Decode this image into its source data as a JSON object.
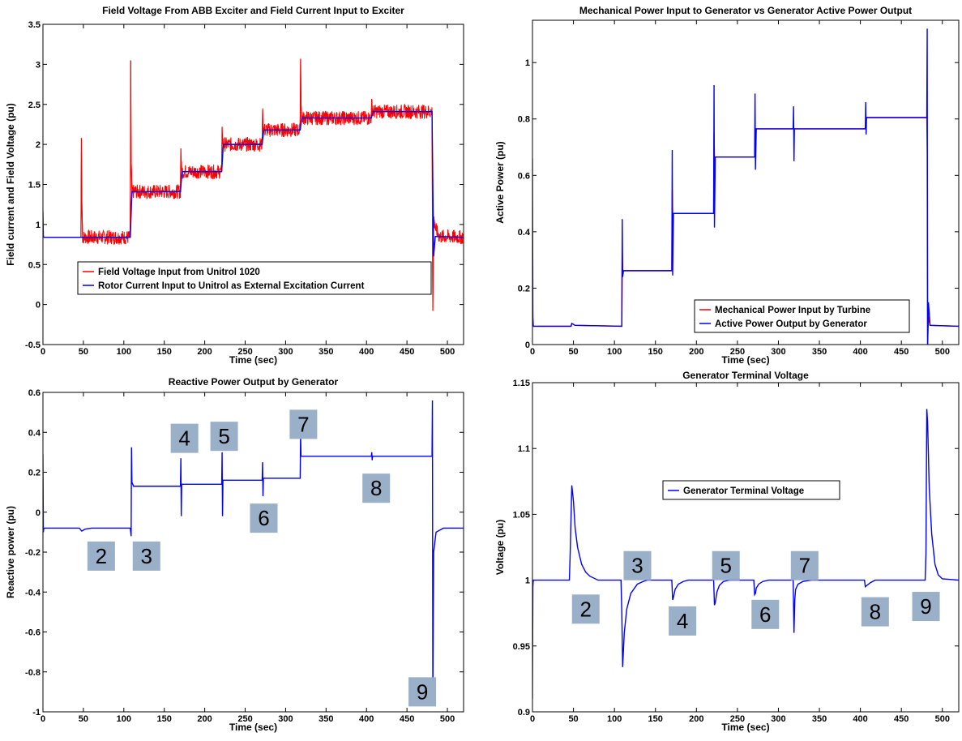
{
  "chart_data": [
    {
      "type": "line",
      "title": "Field Voltage From ABB Exciter and Field Current Input to Exciter",
      "xlabel": "Time (sec)",
      "ylabel": "Field current and Field Voltage (pu)",
      "xlim": [
        0,
        520
      ],
      "ylim": [
        -0.5,
        3.5
      ],
      "xticks": [
        "0",
        "50",
        "100",
        "150",
        "200",
        "250",
        "300",
        "350",
        "400",
        "450",
        "500"
      ],
      "yticks": [
        "-0.5",
        "0",
        "0.5",
        "1",
        "1.5",
        "2",
        "2.5",
        "3",
        "3.5"
      ],
      "legend_placement": "bottom-center",
      "series": [
        {
          "name": "Field Voltage Input from Unitrol 1020",
          "color": "#ff0000",
          "band_halfwidth": 0.09,
          "x": [
            0,
            47,
            47.5,
            48,
            49,
            108,
            108.5,
            109,
            110,
            170,
            170.5,
            171,
            172,
            221,
            221.5,
            222,
            223,
            271,
            271.5,
            272,
            273,
            318,
            318.5,
            319,
            320,
            406,
            406.5,
            407,
            408,
            481,
            482,
            483,
            485,
            490,
            520
          ],
          "y": [
            0.84,
            0.84,
            2.08,
            1.3,
            0.84,
            0.84,
            3.05,
            1.8,
            1.41,
            1.41,
            1.95,
            1.72,
            1.66,
            1.66,
            2.22,
            2.05,
            2.0,
            2.0,
            2.43,
            2.24,
            2.18,
            2.18,
            3.07,
            2.5,
            2.33,
            2.33,
            2.56,
            2.45,
            2.41,
            2.41,
            -0.08,
            1.1,
            0.95,
            0.85,
            0.84
          ]
        },
        {
          "name": "Rotor Current Input to Unitrol as External Excitation Current",
          "color": "#0000ff",
          "x": [
            0,
            0.5,
            1,
            47,
            49,
            108,
            110,
            170,
            172,
            221,
            223,
            271,
            273,
            318,
            320,
            406,
            408,
            481,
            483,
            485,
            520
          ],
          "y": [
            1.16,
            0.86,
            0.84,
            0.84,
            0.84,
            0.84,
            1.41,
            1.41,
            1.66,
            1.66,
            2.0,
            2.0,
            2.18,
            2.18,
            2.33,
            2.33,
            2.41,
            2.41,
            0.6,
            0.85,
            0.84
          ]
        }
      ]
    },
    {
      "type": "line",
      "title": "Mechanical Power Input to Generator vs Generator Active Power Output",
      "xlabel": "Time (sec)",
      "ylabel": "Active Power (pu)",
      "xlim": [
        0,
        520
      ],
      "ylim": [
        0,
        1.15
      ],
      "xticks": [
        "0",
        "50",
        "100",
        "150",
        "200",
        "250",
        "300",
        "350",
        "400",
        "450",
        "500"
      ],
      "yticks": [
        "0",
        "0.2",
        "0.4",
        "0.6",
        "0.8",
        "1"
      ],
      "legend_placement": "bottom-right",
      "series": [
        {
          "name": "Mechanical Power Input by Turbine",
          "color": "#ff0000",
          "x": [
            0,
            47,
            48,
            52,
            109,
            109.5,
            110,
            170,
            170.5,
            171,
            221,
            221.5,
            222,
            271,
            272,
            318,
            319,
            406,
            407,
            481,
            481.5,
            482,
            483,
            485,
            520
          ],
          "y": [
            0.065,
            0.065,
            0.075,
            0.068,
            0.065,
            0.335,
            0.262,
            0.262,
            0.55,
            0.465,
            0.465,
            0.75,
            0.665,
            0.665,
            0.765,
            0.765,
            0.765,
            0.765,
            0.805,
            0.805,
            0.68,
            0.0,
            0.1,
            0.068,
            0.065
          ]
        },
        {
          "name": "Active Power Output by Generator",
          "color": "#0000ff",
          "x": [
            0,
            0.5,
            1,
            47,
            48,
            52,
            109,
            109.5,
            110,
            111,
            170,
            170.5,
            171,
            172,
            221,
            221.5,
            222,
            223,
            271,
            271.5,
            272,
            273,
            318,
            318.5,
            319,
            319.5,
            406,
            406.5,
            407,
            407.5,
            481,
            481.5,
            482,
            483,
            485,
            520
          ],
          "y": [
            0.66,
            0.1,
            0.065,
            0.065,
            0.075,
            0.068,
            0.065,
            0.445,
            0.24,
            0.262,
            0.262,
            0.69,
            0.245,
            0.465,
            0.465,
            0.92,
            0.415,
            0.665,
            0.665,
            0.89,
            0.62,
            0.765,
            0.765,
            0.845,
            0.65,
            0.765,
            0.765,
            0.86,
            0.745,
            0.805,
            0.805,
            1.12,
            0.0,
            0.15,
            0.068,
            0.065
          ]
        }
      ]
    },
    {
      "type": "line",
      "title": "Reactive Power Output by Generator",
      "xlabel": "Time (sec)",
      "ylabel": "Reactive power (pu)",
      "xlim": [
        0,
        520
      ],
      "ylim": [
        -1,
        0.6
      ],
      "xticks": [
        "0",
        "50",
        "100",
        "150",
        "200",
        "250",
        "300",
        "350",
        "400",
        "450",
        "500"
      ],
      "yticks": [
        "-1",
        "-0.8",
        "-0.6",
        "-0.4",
        "-0.2",
        "0",
        "0.2",
        "0.4",
        "0.6"
      ],
      "series": [
        {
          "color": "#0000ff",
          "x": [
            0,
            0.5,
            1,
            45,
            48,
            52,
            60,
            108,
            109,
            109.5,
            110,
            112,
            170,
            170.5,
            171,
            171.5,
            221,
            221.5,
            222,
            222.5,
            271,
            271.5,
            272,
            272.5,
            318,
            318.5,
            319,
            406,
            406.5,
            407,
            407.5,
            481,
            481.5,
            482,
            483,
            486,
            495,
            520
          ],
          "y": [
            0.29,
            -0.1,
            -0.08,
            -0.08,
            -0.095,
            -0.085,
            -0.08,
            -0.08,
            -0.12,
            0.325,
            0.15,
            0.13,
            0.13,
            0.27,
            -0.02,
            0.14,
            0.14,
            0.3,
            -0.02,
            0.16,
            0.16,
            0.25,
            0.08,
            0.17,
            0.17,
            0.39,
            0.28,
            0.28,
            0.3,
            0.26,
            0.28,
            0.28,
            0.56,
            -0.93,
            -0.2,
            -0.1,
            -0.08,
            -0.08
          ]
        }
      ],
      "annotations": [
        {
          "text": "2",
          "x": 72,
          "y": -0.22
        },
        {
          "text": "3",
          "x": 128,
          "y": -0.22
        },
        {
          "text": "4",
          "x": 175,
          "y": 0.37
        },
        {
          "text": "5",
          "x": 224,
          "y": 0.38
        },
        {
          "text": "6",
          "x": 273,
          "y": -0.03
        },
        {
          "text": "7",
          "x": 322,
          "y": 0.44
        },
        {
          "text": "8",
          "x": 412,
          "y": 0.12
        },
        {
          "text": "9",
          "x": 469,
          "y": -0.9
        }
      ]
    },
    {
      "type": "line",
      "title": "Generator Terminal Voltage",
      "xlabel": "Time (sec)",
      "ylabel": "Voltage (pu)",
      "xlim": [
        0,
        520
      ],
      "ylim": [
        0.9,
        1.15
      ],
      "xticks": [
        "0",
        "50",
        "100",
        "150",
        "200",
        "250",
        "300",
        "350",
        "400",
        "450",
        "500"
      ],
      "yticks": [
        "0.9",
        "0.95",
        "1",
        "1.05",
        "1.1",
        "1.15"
      ],
      "legend_placement": "top-center",
      "series": [
        {
          "name": "Generator Terminal Voltage",
          "color": "#0000ff",
          "x": [
            0,
            0.5,
            1,
            45,
            46,
            48,
            50,
            52,
            55,
            60,
            65,
            70,
            80,
            90,
            108,
            109,
            110,
            112,
            115,
            120,
            128,
            135,
            140,
            160,
            170,
            171,
            172,
            174,
            178,
            184,
            190,
            221,
            222,
            223,
            225,
            228,
            233,
            240,
            270,
            271,
            272,
            273,
            276,
            281,
            288,
            318,
            319,
            320,
            321,
            324,
            330,
            340,
            405,
            406,
            408,
            412,
            418,
            479,
            480,
            481,
            482,
            484,
            487,
            491,
            495,
            500,
            520
          ],
          "y": [
            0.91,
            0.995,
            1.0,
            1.0,
            1.02,
            1.072,
            1.06,
            1.04,
            1.025,
            1.012,
            1.006,
            1.003,
            1.0,
            1.0,
            1.0,
            0.975,
            0.934,
            0.96,
            0.978,
            0.99,
            0.997,
            0.999,
            1.0,
            1.0,
            1.0,
            0.985,
            0.987,
            0.993,
            0.997,
            0.999,
            1.0,
            1.0,
            0.981,
            0.983,
            0.991,
            0.996,
            0.999,
            1.0,
            1.0,
            0.989,
            0.99,
            0.994,
            0.997,
            0.999,
            1.0,
            1.0,
            0.96,
            0.985,
            0.993,
            0.997,
            0.999,
            1.0,
            1.0,
            0.995,
            0.996,
            0.998,
            1.0,
            1.0,
            1.02,
            1.13,
            1.12,
            1.07,
            1.035,
            1.012,
            1.004,
            1.001,
            1.0
          ]
        }
      ],
      "annotations": [
        {
          "text": "2",
          "x": 65,
          "y": 0.978
        },
        {
          "text": "3",
          "x": 128,
          "y": 1.011
        },
        {
          "text": "4",
          "x": 183,
          "y": 0.969
        },
        {
          "text": "5",
          "x": 236,
          "y": 1.011
        },
        {
          "text": "6",
          "x": 284,
          "y": 0.974
        },
        {
          "text": "7",
          "x": 332,
          "y": 1.011
        },
        {
          "text": "8",
          "x": 418,
          "y": 0.976
        },
        {
          "text": "9",
          "x": 480,
          "y": 0.98
        }
      ]
    }
  ]
}
